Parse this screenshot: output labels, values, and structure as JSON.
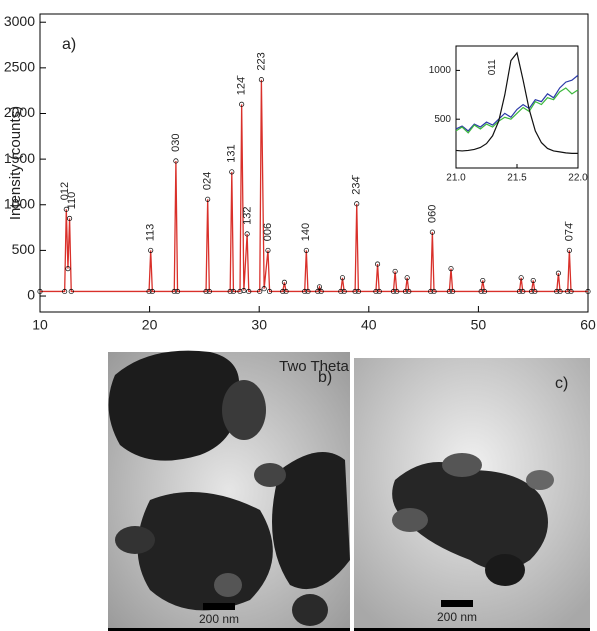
{
  "chart_data": [
    {
      "type": "line",
      "title": "a)",
      "xlabel": "Two Theta",
      "ylabel": "Intensity (counts)",
      "xlim": [
        10,
        60
      ],
      "ylim": [
        -175,
        3090
      ],
      "xticks": [
        10,
        20,
        30,
        40,
        50,
        60
      ],
      "yticks": [
        0,
        500,
        1000,
        1500,
        2000,
        2500,
        3000
      ],
      "markers": true,
      "marker_color": "#000000",
      "x": [
        10,
        12.25,
        12.4,
        12.55,
        12.7,
        12.85,
        19.95,
        20.1,
        20.25,
        22.25,
        22.4,
        22.55,
        25.15,
        25.3,
        25.45,
        27.35,
        27.5,
        27.65,
        28.25,
        28.4,
        28.6,
        28.9,
        29.05,
        30.05,
        30.2,
        30.45,
        30.8,
        30.95,
        32.15,
        32.3,
        32.45,
        34.15,
        34.3,
        34.45,
        35.35,
        35.5,
        35.65,
        37.45,
        37.6,
        37.75,
        38.75,
        38.9,
        39.05,
        40.65,
        40.8,
        40.95,
        42.25,
        42.4,
        42.55,
        43.35,
        43.5,
        43.65,
        45.65,
        45.8,
        45.95,
        47.35,
        47.5,
        47.65,
        50.25,
        50.4,
        50.55,
        53.75,
        53.9,
        54.05,
        54.85,
        55.0,
        55.15,
        57.15,
        57.3,
        57.45,
        58.15,
        58.3,
        58.45,
        60
      ],
      "series": [
        {
          "color": "#d9302a",
          "values": [
            50,
            50,
            950,
            300,
            850,
            50,
            50,
            500,
            50,
            50,
            1480,
            50,
            50,
            1060,
            50,
            50,
            1360,
            50,
            50,
            2100,
            60,
            680,
            50,
            50,
            2370,
            80,
            500,
            50,
            50,
            150,
            50,
            50,
            500,
            50,
            50,
            100,
            50,
            50,
            200,
            50,
            50,
            1010,
            50,
            50,
            350,
            50,
            50,
            270,
            50,
            50,
            200,
            50,
            50,
            700,
            50,
            50,
            300,
            50,
            50,
            170,
            50,
            50,
            200,
            50,
            50,
            170,
            50,
            50,
            250,
            50,
            50,
            500,
            50,
            50
          ]
        }
      ],
      "annotations": [
        {
          "text": "012",
          "x": 12.3,
          "y": 1050
        },
        {
          "text": "110",
          "x": 12.95,
          "y": 950
        },
        {
          "text": "113",
          "x": 20.1,
          "y": 600
        },
        {
          "text": "030",
          "x": 22.4,
          "y": 1580
        },
        {
          "text": "024",
          "x": 25.3,
          "y": 1160
        },
        {
          "text": "131",
          "x": 27.5,
          "y": 1460
        },
        {
          "text": "124̄",
          "x": 28.4,
          "y": 2200
        },
        {
          "text": "13̄2",
          "x": 28.95,
          "y": 780
        },
        {
          "text": "223",
          "x": 30.2,
          "y": 2470
        },
        {
          "text": "006",
          "x": 30.8,
          "y": 600
        },
        {
          "text": "140",
          "x": 34.3,
          "y": 600
        },
        {
          "text": "234̄",
          "x": 38.9,
          "y": 1110
        },
        {
          "text": "060",
          "x": 45.8,
          "y": 800
        },
        {
          "text": "074̄",
          "x": 58.3,
          "y": 600
        }
      ]
    },
    {
      "type": "line",
      "xlim": [
        21.0,
        22.0
      ],
      "ylim": [
        0,
        1250
      ],
      "xticks": [
        {
          "value": 21,
          "label": "21.0"
        },
        {
          "value": 21.5,
          "label": "21.5"
        },
        {
          "value": 22,
          "label": "22.0"
        }
      ],
      "yticks": [
        500,
        1000
      ],
      "x": [
        21,
        21.05,
        21.1,
        21.15,
        21.2,
        21.25,
        21.3,
        21.35,
        21.4,
        21.45,
        21.5,
        21.55,
        21.6,
        21.65,
        21.7,
        21.75,
        21.8,
        21.85,
        21.9,
        21.95,
        22
      ],
      "series": [
        {
          "color": "#2b3aa8",
          "values": [
            400,
            430,
            380,
            450,
            420,
            470,
            440,
            500,
            560,
            520,
            600,
            650,
            610,
            700,
            680,
            760,
            720,
            820,
            880,
            900,
            950
          ]
        },
        {
          "color": "#3cb83c",
          "values": [
            380,
            420,
            360,
            440,
            400,
            450,
            420,
            480,
            520,
            500,
            560,
            620,
            580,
            680,
            650,
            720,
            700,
            780,
            820,
            760,
            800
          ]
        },
        {
          "color": "#111111",
          "values": [
            180,
            175,
            180,
            190,
            210,
            250,
            330,
            480,
            750,
            1100,
            1180,
            900,
            600,
            380,
            260,
            200,
            175,
            165,
            155,
            150,
            150
          ]
        }
      ],
      "annotations": [
        {
          "text": "011",
          "x": 21.3,
          "y": 950
        }
      ]
    }
  ],
  "images": [
    {
      "label": "b)",
      "scale_bar": "200 nm"
    },
    {
      "label": "c)",
      "scale_bar": "200 nm"
    }
  ]
}
